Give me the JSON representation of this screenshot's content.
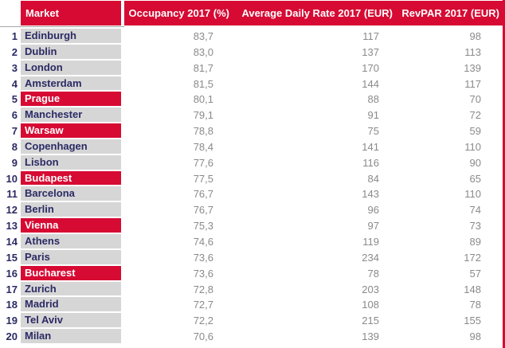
{
  "table": {
    "columns": [
      "Market",
      "Occupancy 2017 (%)",
      "Average Daily Rate 2017 (EUR)",
      "RevPAR 2017 (EUR)"
    ],
    "rows": [
      {
        "rank": "1",
        "market": "Edinburgh",
        "occupancy": "83,7",
        "adr": "117",
        "revpar": "98",
        "highlighted": false
      },
      {
        "rank": "2",
        "market": "Dublin",
        "occupancy": "83,0",
        "adr": "137",
        "revpar": "113",
        "highlighted": false
      },
      {
        "rank": "3",
        "market": "London",
        "occupancy": "81,7",
        "adr": "170",
        "revpar": "139",
        "highlighted": false
      },
      {
        "rank": "4",
        "market": "Amsterdam",
        "occupancy": "81,5",
        "adr": "144",
        "revpar": "117",
        "highlighted": false
      },
      {
        "rank": "5",
        "market": "Prague",
        "occupancy": "80,1",
        "adr": "88",
        "revpar": "70",
        "highlighted": true
      },
      {
        "rank": "6",
        "market": "Manchester",
        "occupancy": "79,1",
        "adr": "91",
        "revpar": "72",
        "highlighted": false
      },
      {
        "rank": "7",
        "market": "Warsaw",
        "occupancy": "78,8",
        "adr": "75",
        "revpar": "59",
        "highlighted": true
      },
      {
        "rank": "8",
        "market": "Copenhagen",
        "occupancy": "78,4",
        "adr": "141",
        "revpar": "110",
        "highlighted": false
      },
      {
        "rank": "9",
        "market": "Lisbon",
        "occupancy": "77,6",
        "adr": "116",
        "revpar": "90",
        "highlighted": false
      },
      {
        "rank": "10",
        "market": "Budapest",
        "occupancy": "77,5",
        "adr": "84",
        "revpar": "65",
        "highlighted": true
      },
      {
        "rank": "11",
        "market": "Barcelona",
        "occupancy": "76,7",
        "adr": "143",
        "revpar": "110",
        "highlighted": false
      },
      {
        "rank": "12",
        "market": "Berlin",
        "occupancy": "76,7",
        "adr": "96",
        "revpar": "74",
        "highlighted": false
      },
      {
        "rank": "13",
        "market": "Vienna",
        "occupancy": "75,3",
        "adr": "97",
        "revpar": "73",
        "highlighted": true
      },
      {
        "rank": "14",
        "market": "Athens",
        "occupancy": "74,6",
        "adr": "119",
        "revpar": "89",
        "highlighted": false
      },
      {
        "rank": "15",
        "market": "Paris",
        "occupancy": "73,6",
        "adr": "234",
        "revpar": "172",
        "highlighted": false
      },
      {
        "rank": "16",
        "market": "Bucharest",
        "occupancy": "73,6",
        "adr": "78",
        "revpar": "57",
        "highlighted": true
      },
      {
        "rank": "17",
        "market": "Zurich",
        "occupancy": "72,8",
        "adr": "203",
        "revpar": "148",
        "highlighted": false
      },
      {
        "rank": "18",
        "market": "Madrid",
        "occupancy": "72,7",
        "adr": "108",
        "revpar": "78",
        "highlighted": false
      },
      {
        "rank": "19",
        "market": "Tel Aviv",
        "occupancy": "72,2",
        "adr": "215",
        "revpar": "155",
        "highlighted": false
      },
      {
        "rank": "20",
        "market": "Milan",
        "occupancy": "70,6",
        "adr": "139",
        "revpar": "98",
        "highlighted": false
      }
    ]
  },
  "colors": {
    "header_red": "#d60a33",
    "highlight_red": "#d60a33",
    "navy_text": "#2b2a64",
    "cell_gray": "#d6d6d6",
    "value_gray": "#8a8a8a"
  }
}
